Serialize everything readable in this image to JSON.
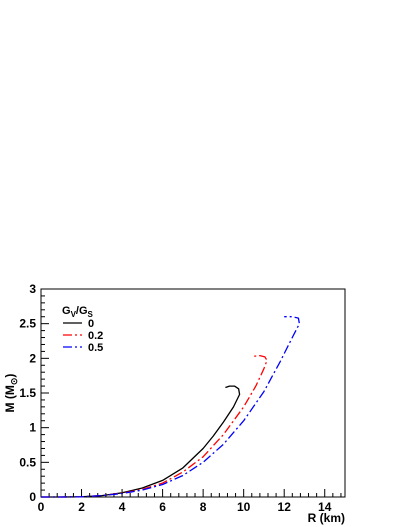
{
  "chart_data": {
    "type": "line",
    "title": "",
    "xlabel": "R (km)",
    "ylabel": "M (M",
    "ylabel_sub": "⊙",
    "ylabel_close": ")",
    "xlim": [
      0,
      15
    ],
    "ylim": [
      0,
      3
    ],
    "x_ticks": [
      0,
      2,
      4,
      6,
      8,
      10,
      12,
      14
    ],
    "y_ticks": [
      0,
      0.5,
      1,
      1.5,
      2,
      2.5,
      3
    ],
    "x_tick_labels": [
      "0",
      "2",
      "4",
      "6",
      "8",
      "10",
      "12",
      "14"
    ],
    "y_tick_labels": [
      "0",
      "0.5",
      "1",
      "1.5",
      "2",
      "2.5",
      "3"
    ],
    "grid": false,
    "legend": {
      "position": "top-left",
      "title_main": "G",
      "title_sub1": "V",
      "title_slash": "/G",
      "title_sub2": "S"
    },
    "series": [
      {
        "name": "0",
        "color": "#000000",
        "dash": "solid",
        "points": [
          [
            0.0,
            0.0
          ],
          [
            1.0,
            0.0
          ],
          [
            2.0,
            0.003
          ],
          [
            3.0,
            0.02
          ],
          [
            4.0,
            0.06
          ],
          [
            5.0,
            0.13
          ],
          [
            6.0,
            0.24
          ],
          [
            7.0,
            0.42
          ],
          [
            8.0,
            0.7
          ],
          [
            8.5,
            0.88
          ],
          [
            9.0,
            1.08
          ],
          [
            9.5,
            1.3
          ],
          [
            9.8,
            1.48
          ],
          [
            9.75,
            1.56
          ],
          [
            9.55,
            1.6
          ],
          [
            9.3,
            1.6
          ],
          [
            9.1,
            1.58
          ]
        ]
      },
      {
        "name": "0.2",
        "color": "#ff0000",
        "dash": "dashdot",
        "points": [
          [
            0.0,
            0.0
          ],
          [
            1.0,
            0.0
          ],
          [
            2.0,
            0.003
          ],
          [
            3.0,
            0.02
          ],
          [
            4.0,
            0.055
          ],
          [
            5.0,
            0.11
          ],
          [
            6.0,
            0.2
          ],
          [
            7.0,
            0.36
          ],
          [
            8.0,
            0.58
          ],
          [
            9.0,
            0.9
          ],
          [
            10.0,
            1.3
          ],
          [
            10.6,
            1.6
          ],
          [
            11.0,
            1.85
          ],
          [
            11.15,
            1.97
          ],
          [
            11.05,
            2.02
          ],
          [
            10.8,
            2.04
          ],
          [
            10.5,
            2.03
          ]
        ]
      },
      {
        "name": "0.5",
        "color": "#0000ff",
        "dash": "dashdot",
        "points": [
          [
            0.0,
            0.0
          ],
          [
            1.0,
            0.0
          ],
          [
            2.0,
            0.003
          ],
          [
            3.0,
            0.02
          ],
          [
            4.0,
            0.05
          ],
          [
            5.0,
            0.1
          ],
          [
            6.0,
            0.18
          ],
          [
            7.0,
            0.31
          ],
          [
            8.0,
            0.5
          ],
          [
            9.0,
            0.76
          ],
          [
            10.0,
            1.1
          ],
          [
            11.0,
            1.52
          ],
          [
            11.8,
            1.95
          ],
          [
            12.4,
            2.3
          ],
          [
            12.75,
            2.5
          ],
          [
            12.7,
            2.58
          ],
          [
            12.4,
            2.6
          ],
          [
            12.0,
            2.6
          ]
        ]
      }
    ]
  }
}
